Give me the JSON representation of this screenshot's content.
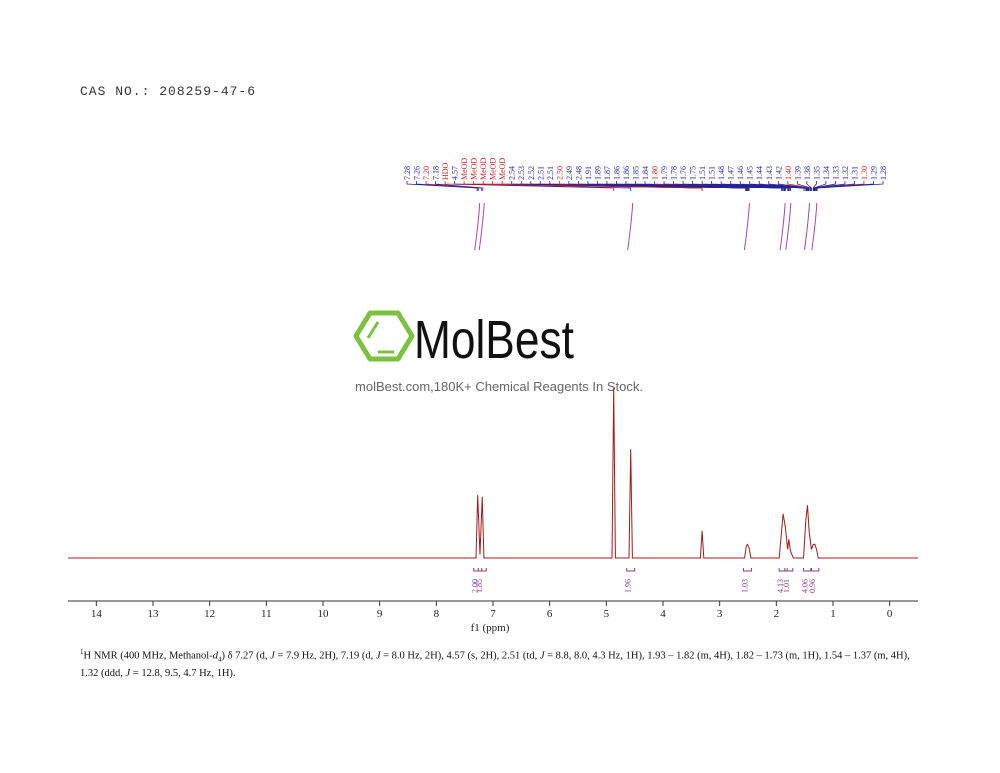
{
  "cas": "CAS NO.: 208259-47-6",
  "logo": {
    "name": "MolBest",
    "tagline": "molBest.com,180K+ Chemical Reagents In Stock."
  },
  "peak_labels": [
    7.28,
    7.26,
    {
      "value": 7.2,
      "label": "7.20"
    },
    7.18,
    {
      "value": 4.87,
      "label": "HDO"
    },
    4.57,
    {
      "value": 3.31,
      "label": "MeOD"
    },
    {
      "value": 3.31,
      "label": "MeOD"
    },
    {
      "value": 3.31,
      "label": "MeOD"
    },
    {
      "value": 3.31,
      "label": "MeOD"
    },
    {
      "value": 3.31,
      "label": "MeOD"
    },
    2.54,
    2.53,
    2.52,
    2.51,
    2.51,
    {
      "value": 2.5,
      "label": "2.50"
    },
    2.49,
    2.48,
    1.91,
    1.89,
    1.87,
    1.86,
    1.86,
    1.85,
    1.84,
    {
      "value": 1.8,
      "label": "1.80"
    },
    1.79,
    1.78,
    1.76,
    1.75,
    1.51,
    1.51,
    1.48,
    1.47,
    1.46,
    1.45,
    1.44,
    1.43,
    1.42,
    {
      "value": 1.4,
      "label": "1.40"
    },
    1.39,
    1.38,
    1.35,
    1.34,
    1.33,
    1.32,
    1.31,
    {
      "value": 1.3,
      "label": "1.30"
    },
    1.29,
    1.28
  ],
  "chart_data": {
    "type": "line",
    "x_label": "f1 (ppm)",
    "xlim": [
      14.5,
      -0.5
    ],
    "xticks": [
      14,
      13,
      12,
      11,
      10,
      9,
      8,
      7,
      6,
      5,
      4,
      3,
      2,
      1,
      0
    ],
    "ylim": [
      0,
      1
    ],
    "color": "#a01c1c",
    "x": [
      14.5,
      7.3,
      7.27,
      7.23,
      7.19,
      7.16,
      4.9,
      4.87,
      4.84,
      4.6,
      4.57,
      4.54,
      3.34,
      3.31,
      3.28,
      2.56,
      2.53,
      2.51,
      2.48,
      2.45,
      1.95,
      1.88,
      1.84,
      1.8,
      1.78,
      1.75,
      1.7,
      1.52,
      1.48,
      1.45,
      1.42,
      1.38,
      1.35,
      1.32,
      1.29,
      1.26,
      -0.5
    ],
    "values": [
      0,
      0,
      0.37,
      0.02,
      0.36,
      0,
      0,
      1.0,
      0,
      0,
      0.64,
      0,
      0,
      0.16,
      0,
      0,
      0.07,
      0.08,
      0.06,
      0,
      0,
      0.26,
      0.18,
      0.05,
      0.11,
      0.04,
      0,
      0,
      0.22,
      0.31,
      0.15,
      0.05,
      0.08,
      0.08,
      0.05,
      0,
      0
    ],
    "integrals": {
      "x": [
        7.27,
        7.19,
        4.57,
        2.51,
        1.88,
        1.78,
        1.45,
        1.32
      ],
      "values": [
        2,
        1.85,
        1.96,
        1.03,
        4.13,
        1.01,
        4.06,
        0.96
      ],
      "value_labels": [
        "2.00",
        "1.85",
        "1.96",
        "1.03",
        "4.13",
        "1.01",
        "4.06",
        "0.96"
      ]
    }
  },
  "caption": [
    "1",
    "H NMR (400 MHz, Methanol-",
    "d",
    "4",
    ") δ 7.27 (d, ",
    "J",
    " = 7.9 Hz, 2H), 7.19 (d, ",
    "J",
    " = 8.0 Hz, 2H), 4.57 (s, 2H), 2.51 (td, ",
    "J",
    " = 8.8, 8.0, 4.3 Hz, 1H), 1.93 – 1.82 (m, 4H), 1.82 – 1.73 (m, 1H), 1.54 – 1.37 (m, 4H), 1.32 (ddd, ",
    "J",
    " = 12.8, 9.5, 4.7 Hz, 1H)."
  ]
}
